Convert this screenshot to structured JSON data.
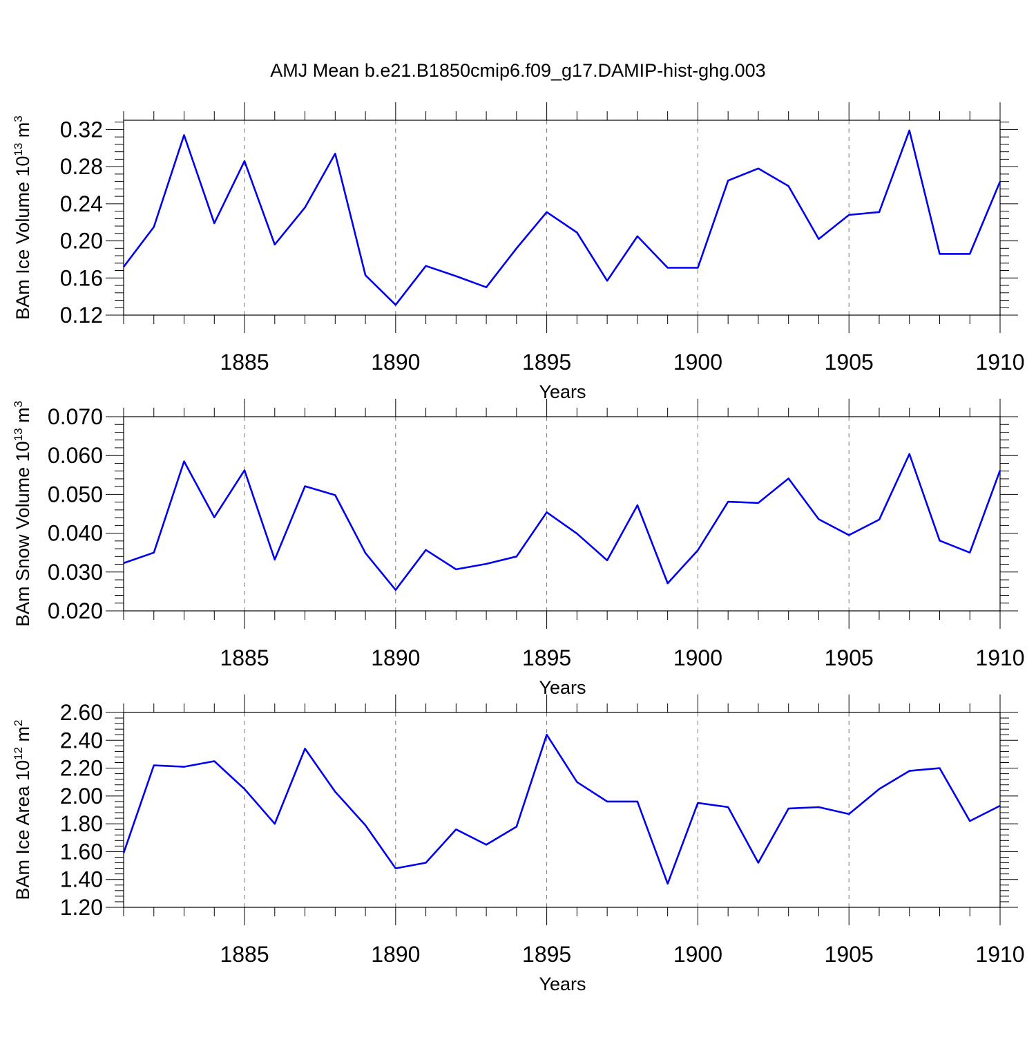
{
  "title": "AMJ Mean b.e21.B1850cmip6.f09_g17.DAMIP-hist-ghg.003",
  "colors": {
    "series": "#0000ee",
    "grid": "#777777",
    "axis": "#000000"
  },
  "chart_data": [
    {
      "type": "line",
      "xlabel": "Years",
      "ylabel": "BAm Ice Volume 10",
      "ylabel_exp": "13",
      "ylabel_unit": " m",
      "ylabel_unit_exp": "3",
      "xlim": [
        1881,
        1910
      ],
      "ylim": [
        0.12,
        0.33
      ],
      "xticks": [
        1885,
        1890,
        1895,
        1900,
        1905,
        1910
      ],
      "yticks": [
        0.12,
        0.16,
        0.2,
        0.24,
        0.28,
        0.32
      ],
      "ytick_labels": [
        "0.12",
        "0.16",
        "0.20",
        "0.24",
        "0.28",
        "0.32"
      ],
      "grid": "vertical-dashed",
      "x": [
        1881,
        1882,
        1883,
        1884,
        1885,
        1886,
        1887,
        1888,
        1889,
        1890,
        1891,
        1892,
        1893,
        1894,
        1895,
        1896,
        1897,
        1898,
        1899,
        1900,
        1901,
        1902,
        1903,
        1904,
        1905,
        1906,
        1907,
        1908,
        1909,
        1910
      ],
      "y": [
        0.172,
        0.215,
        0.314,
        0.219,
        0.286,
        0.196,
        0.236,
        0.294,
        0.163,
        0.131,
        0.173,
        0.162,
        0.15,
        0.192,
        0.231,
        0.209,
        0.157,
        0.205,
        0.171,
        0.171,
        0.265,
        0.278,
        0.259,
        0.202,
        0.228,
        0.231,
        0.319,
        0.186,
        0.186,
        0.264
      ]
    },
    {
      "type": "line",
      "xlabel": "Years",
      "ylabel": "BAm Snow Volume 10",
      "ylabel_exp": "13",
      "ylabel_unit": " m",
      "ylabel_unit_exp": "3",
      "xlim": [
        1881,
        1910
      ],
      "ylim": [
        0.02,
        0.07
      ],
      "xticks": [
        1885,
        1890,
        1895,
        1900,
        1905,
        1910
      ],
      "yticks": [
        0.02,
        0.03,
        0.04,
        0.05,
        0.06,
        0.07
      ],
      "ytick_labels": [
        "0.020",
        "0.030",
        "0.040",
        "0.050",
        "0.060",
        "0.070"
      ],
      "grid": "vertical-dashed",
      "x": [
        1881,
        1882,
        1883,
        1884,
        1885,
        1886,
        1887,
        1888,
        1889,
        1890,
        1891,
        1892,
        1893,
        1894,
        1895,
        1896,
        1897,
        1898,
        1899,
        1900,
        1901,
        1902,
        1903,
        1904,
        1905,
        1906,
        1907,
        1908,
        1909,
        1910
      ],
      "y": [
        0.0323,
        0.035,
        0.0585,
        0.0441,
        0.0562,
        0.0332,
        0.0521,
        0.0498,
        0.0349,
        0.0254,
        0.0357,
        0.0307,
        0.0321,
        0.034,
        0.0454,
        0.0399,
        0.033,
        0.0472,
        0.0271,
        0.0356,
        0.0481,
        0.0478,
        0.0541,
        0.0436,
        0.0395,
        0.0435,
        0.0604,
        0.0381,
        0.035,
        0.0562
      ]
    },
    {
      "type": "line",
      "xlabel": "Years",
      "ylabel": "BAm Ice Area 10",
      "ylabel_exp": "12",
      "ylabel_unit": " m",
      "ylabel_unit_exp": "2",
      "xlim": [
        1881,
        1910
      ],
      "ylim": [
        1.2,
        2.6
      ],
      "xticks": [
        1885,
        1890,
        1895,
        1900,
        1905,
        1910
      ],
      "yticks": [
        1.2,
        1.4,
        1.6,
        1.8,
        2.0,
        2.2,
        2.4,
        2.6
      ],
      "ytick_labels": [
        "1.20",
        "1.40",
        "1.60",
        "1.80",
        "2.00",
        "2.20",
        "2.40",
        "2.60"
      ],
      "grid": "vertical-dashed",
      "x": [
        1881,
        1882,
        1883,
        1884,
        1885,
        1886,
        1887,
        1888,
        1889,
        1890,
        1891,
        1892,
        1893,
        1894,
        1895,
        1896,
        1897,
        1898,
        1899,
        1900,
        1901,
        1902,
        1903,
        1904,
        1905,
        1906,
        1907,
        1908,
        1909,
        1910
      ],
      "y": [
        1.59,
        2.22,
        2.21,
        2.25,
        2.05,
        1.8,
        2.34,
        2.03,
        1.79,
        1.48,
        1.52,
        1.76,
        1.65,
        1.78,
        2.44,
        2.1,
        1.96,
        1.96,
        1.37,
        1.95,
        1.92,
        1.52,
        1.91,
        1.92,
        1.87,
        2.05,
        2.18,
        2.2,
        1.82,
        1.93
      ]
    }
  ]
}
